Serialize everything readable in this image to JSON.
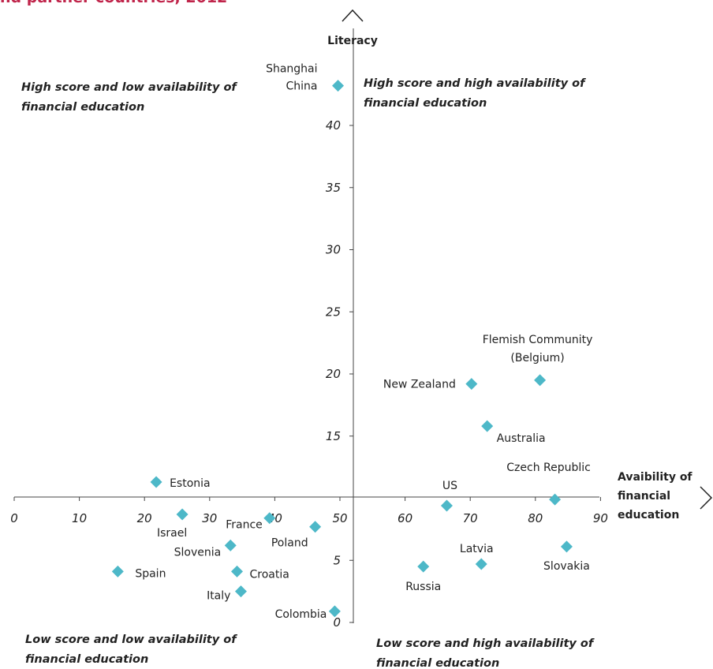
{
  "title": "nd partner countries, 2012",
  "chart_data": {
    "type": "scatter",
    "xlabel": [
      "Avaibility of",
      "financial",
      "education"
    ],
    "ylabel": "Literacy",
    "xlim": [
      0,
      90
    ],
    "ylim": [
      0,
      45
    ],
    "x_ticks": [
      "0",
      "10",
      "20",
      "30",
      "40",
      "50",
      "60",
      "70",
      "80",
      "90"
    ],
    "y_ticks": [
      "0",
      "5",
      "15",
      "20",
      "25",
      "30",
      "35",
      "40"
    ],
    "quadrants": {
      "top_left": [
        "High score and low availability of",
        "financial education"
      ],
      "top_right": [
        "High score and high availability of",
        "financial education"
      ],
      "bottom_left": [
        "Low score and low availability of",
        "financial education"
      ],
      "bottom_right": [
        "Low score and high availability of",
        "financial education"
      ]
    },
    "marker_color": "#4db8c8",
    "points": [
      {
        "label": [
          "Shanghai",
          "China"
        ],
        "x": 49.7,
        "y": 43.2
      },
      {
        "label": [
          "Flemish Community",
          "(Belgium)"
        ],
        "x": 80.7,
        "y": 19.5
      },
      {
        "label": [
          "New Zealand"
        ],
        "x": 70.2,
        "y": 19.2
      },
      {
        "label": [
          "Australia"
        ],
        "x": 72.6,
        "y": 15.8
      },
      {
        "label": [
          "Estonia"
        ],
        "x": 21.8,
        "y": 11.3
      },
      {
        "label": [
          "Czech Republic"
        ],
        "x": 83.0,
        "y": 9.9
      },
      {
        "label": [
          "US"
        ],
        "x": 66.4,
        "y": 9.4
      },
      {
        "label": [
          "Israel"
        ],
        "x": 25.8,
        "y": 8.7
      },
      {
        "label": [
          "France"
        ],
        "x": 39.2,
        "y": 8.4
      },
      {
        "label": [
          "Poland"
        ],
        "x": 46.2,
        "y": 7.7
      },
      {
        "label": [
          "Slovenia"
        ],
        "x": 33.2,
        "y": 6.2
      },
      {
        "label": [
          "Slovakia"
        ],
        "x": 84.8,
        "y": 6.1
      },
      {
        "label": [
          "Latvia"
        ],
        "x": 71.7,
        "y": 4.7
      },
      {
        "label": [
          "Russia"
        ],
        "x": 62.8,
        "y": 4.5
      },
      {
        "label": [
          "Croatia"
        ],
        "x": 34.2,
        "y": 4.1
      },
      {
        "label": [
          "Spain"
        ],
        "x": 15.9,
        "y": 4.1
      },
      {
        "label": [
          "Italy"
        ],
        "x": 34.8,
        "y": 2.5
      },
      {
        "label": [
          "Colombia"
        ],
        "x": 49.2,
        "y": 0.9
      }
    ]
  }
}
